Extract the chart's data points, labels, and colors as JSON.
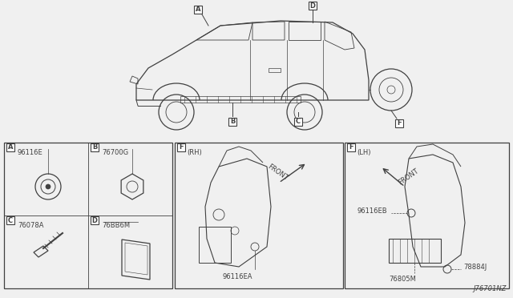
{
  "bg_color": "#f0f0f0",
  "part_number": "J76701NZ",
  "lc": "#404040",
  "labels": {
    "A": "96116E",
    "B": "76700G",
    "C": "76078A",
    "D": "76BB6M",
    "F_RH": "96116EA",
    "F_LH1": "96116EB",
    "F_LH2": "76805M",
    "F_LH3": "78884J"
  },
  "fs": 6,
  "fs_label": 7
}
